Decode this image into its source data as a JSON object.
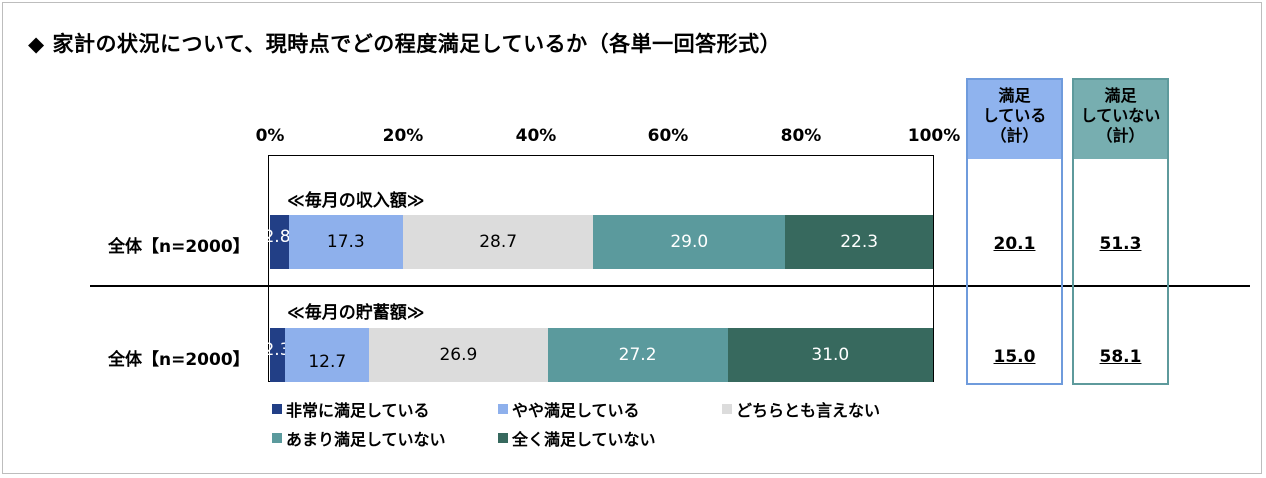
{
  "title": "◆ 家計の状況について、現時点でどの程度満足しているか（各単一回答形式）",
  "colors": {
    "very_satisfied": "#223f86",
    "somewhat_satisfied": "#8eb0ec",
    "neutral": "#dcdcdc",
    "not_very_satisfied": "#5b9a9d",
    "not_at_all_satisfied": "#37695e"
  },
  "chart_data": {
    "type": "bar",
    "orientation": "horizontal",
    "stacked": true,
    "xlim": [
      0,
      100
    ],
    "x_ticks": [
      "0%",
      "20%",
      "40%",
      "60%",
      "80%",
      "100%"
    ],
    "legend_position": "bottom",
    "series_names": [
      "非常に満足している",
      "やや満足している",
      "どちらとも言えない",
      "あまり満足していない",
      "全く満足していない"
    ],
    "groups": [
      {
        "section_label": "≪毎月の収入額≫",
        "row_label": "全体【n=2000】",
        "values": [
          2.8,
          17.3,
          28.7,
          29.0,
          22.3
        ],
        "value_labels": [
          "2.8",
          "17.3",
          "28.7",
          "29.0",
          "22.3"
        ],
        "satisfied_total": "20.1",
        "not_satisfied_total": "51.3"
      },
      {
        "section_label": "≪毎月の貯蓄額≫",
        "row_label": "全体【n=2000】",
        "values": [
          2.3,
          12.7,
          26.9,
          27.2,
          31.0
        ],
        "value_labels": [
          "2.3",
          "12.7",
          "26.9",
          "27.2",
          "31.0"
        ],
        "satisfied_total": "15.0",
        "not_satisfied_total": "58.1"
      }
    ],
    "summary_headers": {
      "satisfied": [
        "満足",
        "している",
        "（計）"
      ],
      "not_satisfied": [
        "満足",
        "していない",
        "（計）"
      ]
    }
  }
}
